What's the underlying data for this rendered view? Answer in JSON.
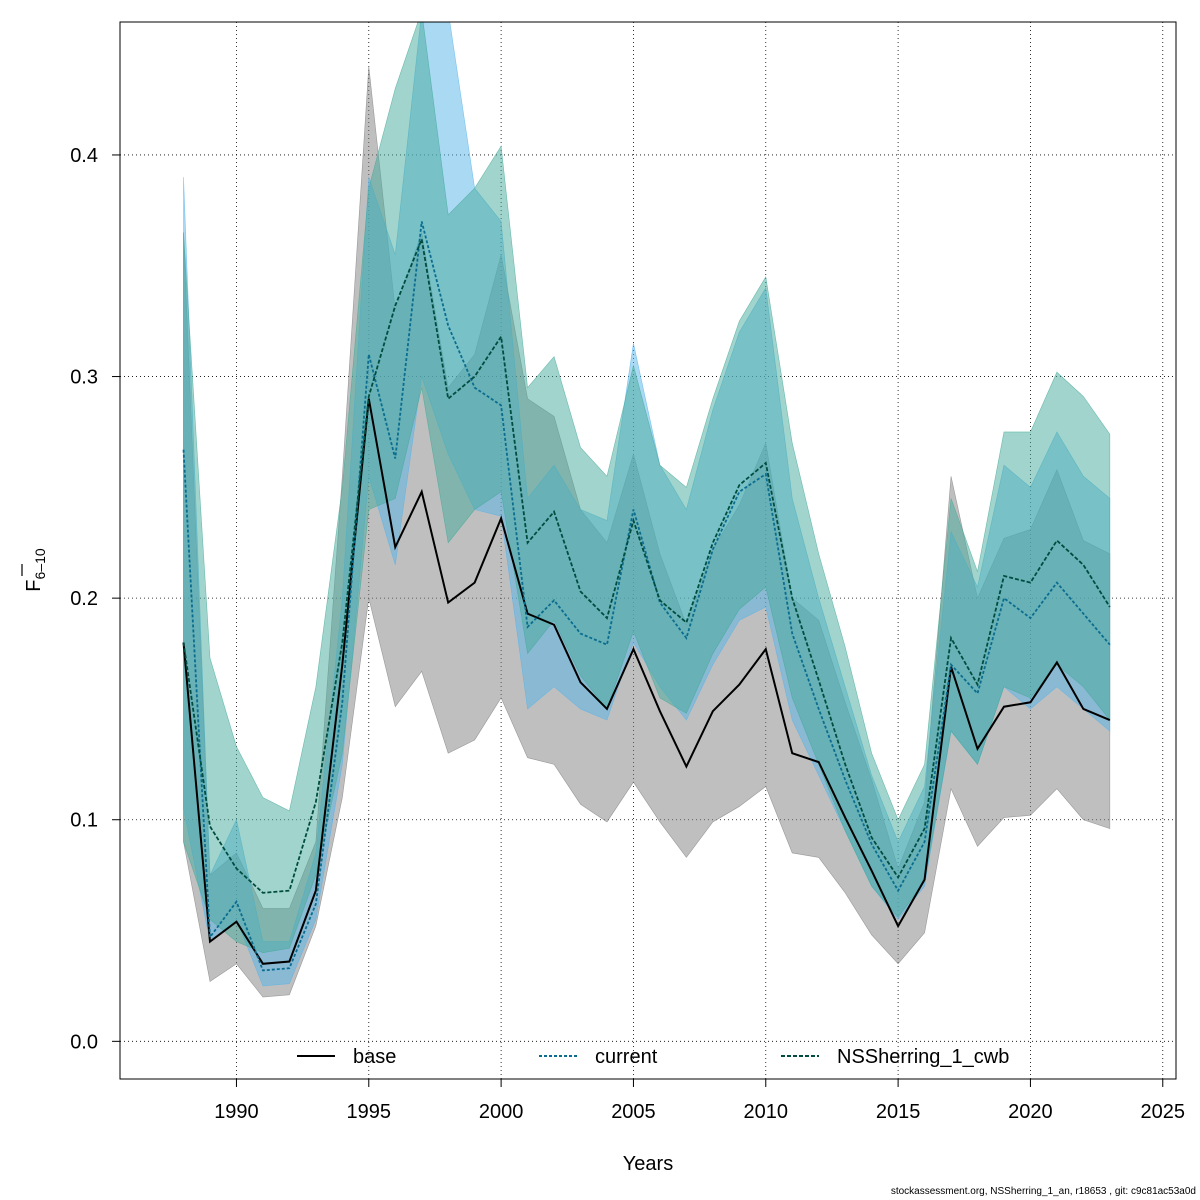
{
  "chart_data": {
    "type": "line",
    "xlabel": "Years",
    "ylabel_main": "F",
    "ylabel_sub": "6–10",
    "xlim": [
      1985.6,
      2025.5
    ],
    "ylim": [
      -0.017,
      0.46
    ],
    "x_ticks": [
      1990,
      1995,
      2000,
      2005,
      2010,
      2015,
      2020,
      2025
    ],
    "y_ticks": [
      0.0,
      0.1,
      0.2,
      0.3,
      0.4
    ],
    "y_tick_labels": [
      "0.0",
      "0.1",
      "0.2",
      "0.3",
      "0.4"
    ],
    "grid": true,
    "legend_position": "bottom",
    "x": [
      1988,
      1989,
      1990,
      1991,
      1992,
      1993,
      1994,
      1995,
      1996,
      1997,
      1998,
      1999,
      2000,
      2001,
      2002,
      2003,
      2004,
      2005,
      2006,
      2007,
      2008,
      2009,
      2010,
      2011,
      2012,
      2013,
      2014,
      2015,
      2016,
      2017,
      2018,
      2019,
      2020,
      2021,
      2022,
      2023
    ],
    "series": [
      {
        "name": "base",
        "color": "#000000",
        "band_color": "#7f7f7f",
        "line_style": "solid",
        "values": [
          0.18,
          0.045,
          0.054,
          0.035,
          0.036,
          0.068,
          0.17,
          0.29,
          0.223,
          0.248,
          0.198,
          0.207,
          0.236,
          0.193,
          0.188,
          0.162,
          0.15,
          0.177,
          0.149,
          0.124,
          0.149,
          0.161,
          0.177,
          0.13,
          0.126,
          0.101,
          0.077,
          0.052,
          0.073,
          0.169,
          0.132,
          0.151,
          0.153,
          0.171,
          0.15,
          0.145
        ],
        "lower": [
          0.09,
          0.027,
          0.035,
          0.02,
          0.021,
          0.052,
          0.11,
          0.2,
          0.151,
          0.167,
          0.13,
          0.136,
          0.155,
          0.128,
          0.125,
          0.107,
          0.099,
          0.117,
          0.099,
          0.083,
          0.099,
          0.106,
          0.115,
          0.085,
          0.083,
          0.067,
          0.048,
          0.035,
          0.049,
          0.114,
          0.088,
          0.101,
          0.102,
          0.114,
          0.1,
          0.096
        ],
        "upper": [
          0.365,
          0.075,
          0.085,
          0.06,
          0.06,
          0.09,
          0.255,
          0.44,
          0.33,
          0.365,
          0.295,
          0.31,
          0.355,
          0.29,
          0.282,
          0.24,
          0.225,
          0.265,
          0.22,
          0.188,
          0.222,
          0.242,
          0.27,
          0.2,
          0.19,
          0.153,
          0.118,
          0.078,
          0.108,
          0.255,
          0.2,
          0.227,
          0.231,
          0.258,
          0.226,
          0.22
        ]
      },
      {
        "name": "current",
        "color": "#0a6d8f",
        "band_color": "#56b4e9",
        "line_style": "dotted",
        "values": [
          0.267,
          0.047,
          0.063,
          0.032,
          0.033,
          0.062,
          0.153,
          0.31,
          0.263,
          0.37,
          0.323,
          0.295,
          0.287,
          0.187,
          0.199,
          0.184,
          0.179,
          0.24,
          0.198,
          0.182,
          0.222,
          0.248,
          0.256,
          0.184,
          0.15,
          0.118,
          0.089,
          0.068,
          0.09,
          0.17,
          0.157,
          0.2,
          0.191,
          0.207,
          0.193,
          0.179
        ],
        "lower": [
          0.105,
          0.045,
          0.055,
          0.025,
          0.026,
          0.055,
          0.125,
          0.255,
          0.215,
          0.3,
          0.265,
          0.24,
          0.237,
          0.15,
          0.16,
          0.15,
          0.145,
          0.18,
          0.16,
          0.145,
          0.17,
          0.19,
          0.196,
          0.145,
          0.12,
          0.095,
          0.07,
          0.055,
          0.07,
          0.14,
          0.125,
          0.16,
          0.15,
          0.16,
          0.15,
          0.14
        ],
        "upper": [
          0.39,
          0.075,
          0.1,
          0.045,
          0.045,
          0.085,
          0.2,
          0.39,
          0.355,
          0.465,
          0.465,
          0.385,
          0.37,
          0.245,
          0.26,
          0.24,
          0.235,
          0.315,
          0.26,
          0.24,
          0.285,
          0.32,
          0.34,
          0.245,
          0.2,
          0.16,
          0.12,
          0.09,
          0.115,
          0.23,
          0.205,
          0.26,
          0.25,
          0.275,
          0.255,
          0.245
        ]
      },
      {
        "name": "NSSherring_1_cwb",
        "color": "#004d40",
        "band_color": "#44aa99",
        "line_style": "dashed",
        "values": [
          0.18,
          0.097,
          0.078,
          0.067,
          0.068,
          0.108,
          0.18,
          0.291,
          0.332,
          0.362,
          0.29,
          0.3,
          0.318,
          0.225,
          0.239,
          0.203,
          0.191,
          0.235,
          0.199,
          0.189,
          0.225,
          0.251,
          0.261,
          0.2,
          0.163,
          0.125,
          0.092,
          0.074,
          0.096,
          0.182,
          0.161,
          0.21,
          0.207,
          0.226,
          0.215,
          0.196
        ],
        "lower": [
          0.09,
          0.055,
          0.045,
          0.04,
          0.042,
          0.075,
          0.13,
          0.24,
          0.245,
          0.295,
          0.225,
          0.24,
          0.248,
          0.175,
          0.19,
          0.165,
          0.15,
          0.185,
          0.155,
          0.148,
          0.175,
          0.195,
          0.205,
          0.155,
          0.125,
          0.095,
          0.07,
          0.056,
          0.072,
          0.14,
          0.125,
          0.16,
          0.155,
          0.17,
          0.16,
          0.145
        ],
        "upper": [
          0.365,
          0.173,
          0.133,
          0.11,
          0.104,
          0.16,
          0.25,
          0.385,
          0.43,
          0.465,
          0.373,
          0.385,
          0.404,
          0.295,
          0.309,
          0.268,
          0.255,
          0.305,
          0.26,
          0.25,
          0.29,
          0.325,
          0.345,
          0.27,
          0.22,
          0.178,
          0.13,
          0.1,
          0.125,
          0.245,
          0.212,
          0.275,
          0.275,
          0.302,
          0.291,
          0.274
        ]
      }
    ]
  },
  "footer_text": "stockassessment.org, NSSherring_1_an, r18653 , git: c9c81ac53a0d"
}
